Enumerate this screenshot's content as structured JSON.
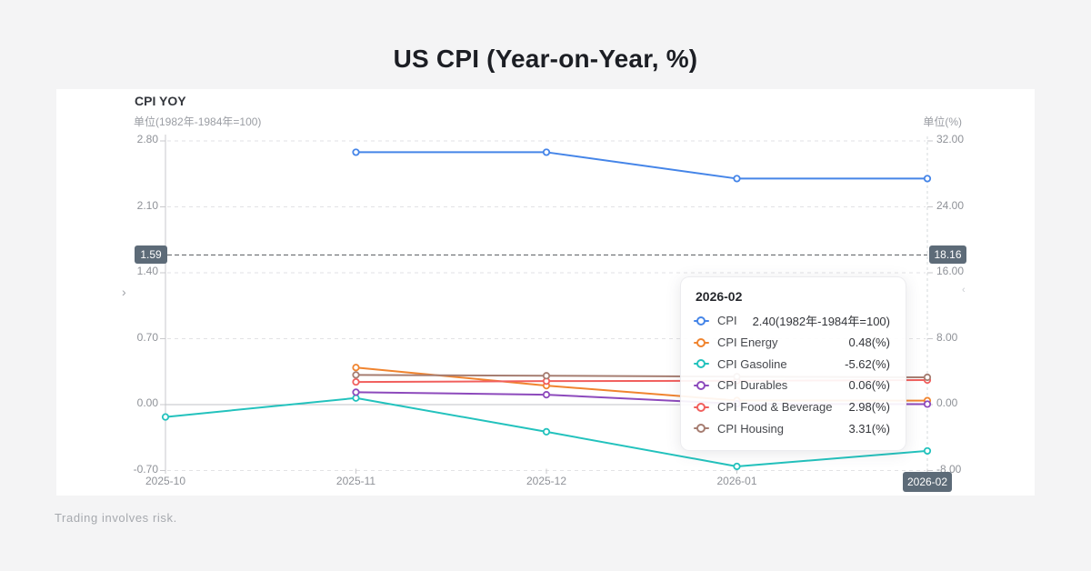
{
  "page": {
    "title": "US CPI (Year-on-Year, %)",
    "disclaimer": "Trading involves risk."
  },
  "chart": {
    "title": "CPI YOY",
    "left_badge": "1.59",
    "right_badge": "18.16",
    "x_badge": "2026-02",
    "left_chevron": "›",
    "right_chevron": "‹"
  },
  "chart_data": {
    "type": "line",
    "categories": [
      "2025-10",
      "2025-11",
      "2025-12",
      "2026-01",
      "2026-02"
    ],
    "highlighted_x": "2026-02",
    "grid": true,
    "left_axis": {
      "label": "单位(1982年-1984年=100)",
      "ticks": [
        2.8,
        2.1,
        1.4,
        0.7,
        0.0,
        -0.7
      ],
      "range": [
        -0.7,
        2.8
      ]
    },
    "right_axis": {
      "label": "单位(%)",
      "ticks": [
        32.0,
        24.0,
        16.0,
        8.0,
        0.0,
        -8.0
      ],
      "range": [
        -8.0,
        32.0
      ]
    },
    "reference_line": {
      "left_value": 1.59,
      "right_value": 18.16
    },
    "series": [
      {
        "name": "CPI",
        "axis": "left",
        "color": "#4585e8",
        "values": [
          null,
          2.68,
          2.68,
          2.4,
          2.4
        ]
      },
      {
        "name": "CPI Energy",
        "axis": "right",
        "color": "#f0842f",
        "values": [
          null,
          4.5,
          2.3,
          0.5,
          0.48
        ]
      },
      {
        "name": "CPI Gasoline",
        "axis": "right",
        "color": "#23c2bd",
        "values": [
          -1.5,
          0.8,
          -3.3,
          -7.5,
          -5.62
        ]
      },
      {
        "name": "CPI Durables",
        "axis": "right",
        "color": "#8d4abc",
        "values": [
          null,
          1.5,
          1.2,
          0.1,
          0.06
        ]
      },
      {
        "name": "CPI Food & Beverage",
        "axis": "right",
        "color": "#f15f5d",
        "values": [
          null,
          2.75,
          2.85,
          2.9,
          2.98
        ]
      },
      {
        "name": "CPI Housing",
        "axis": "right",
        "color": "#a67d71",
        "values": [
          null,
          3.6,
          3.5,
          3.4,
          3.31
        ]
      }
    ]
  },
  "tooltip": {
    "title": "2026-02",
    "rows": [
      {
        "label": "CPI",
        "value": "2.40(1982年-1984年=100)"
      },
      {
        "label": "CPI Energy",
        "value": "0.48(%)"
      },
      {
        "label": "CPI Gasoline",
        "value": "-5.62(%)"
      },
      {
        "label": "CPI Durables",
        "value": "0.06(%)"
      },
      {
        "label": "CPI Food & Beverage",
        "value": "2.98(%)"
      },
      {
        "label": "CPI Housing",
        "value": "3.31(%)"
      }
    ]
  }
}
